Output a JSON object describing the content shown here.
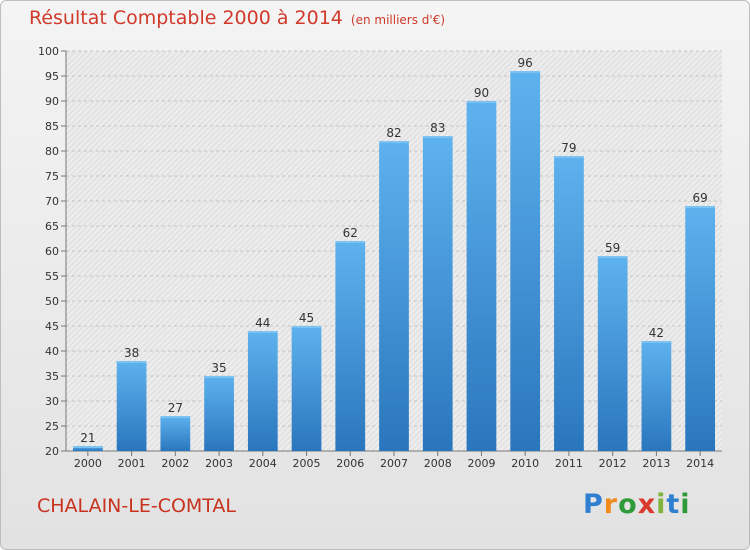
{
  "chart_data": {
    "type": "bar",
    "title": "Résultat Comptable 2000 à 2014",
    "unit": "(en milliers d'€)",
    "categories": [
      "2000",
      "2001",
      "2002",
      "2003",
      "2004",
      "2005",
      "2006",
      "2007",
      "2008",
      "2009",
      "2010",
      "2011",
      "2012",
      "2013",
      "2014"
    ],
    "values": [
      21,
      38,
      27,
      35,
      44,
      45,
      62,
      82,
      83,
      90,
      96,
      79,
      59,
      42,
      69
    ],
    "ylim": [
      20,
      100
    ],
    "yticks": [
      20,
      25,
      30,
      35,
      40,
      45,
      50,
      55,
      60,
      65,
      70,
      75,
      80,
      85,
      90,
      95,
      100
    ],
    "grid": true,
    "bar_color": "#4a9fe0",
    "xlabel": "",
    "ylabel": ""
  },
  "footer": {
    "town": "CHALAIN-LE-COMTAL",
    "logo": [
      "P",
      "r",
      "o",
      "x",
      "i",
      "t",
      "i"
    ]
  }
}
